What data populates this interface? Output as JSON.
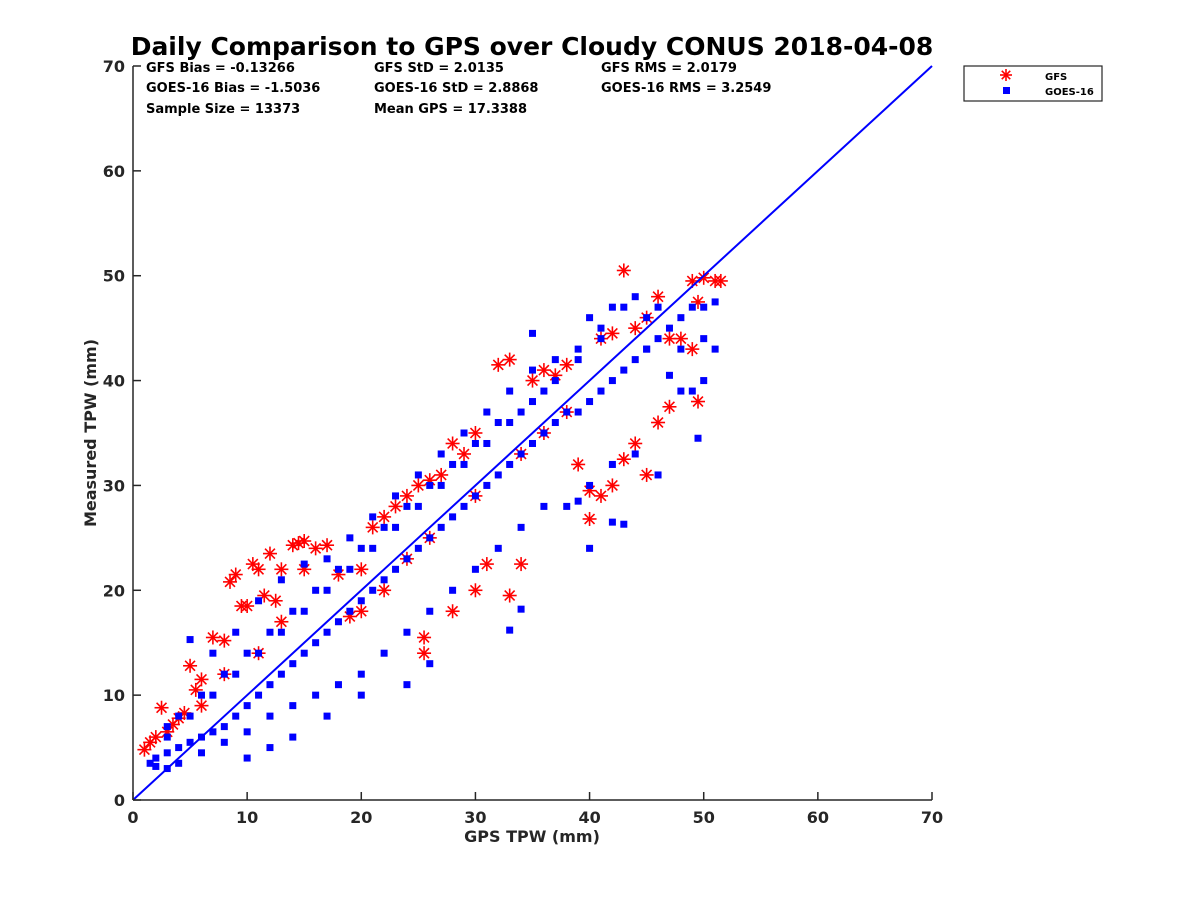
{
  "chart_data": {
    "type": "scatter",
    "title": "Daily Comparison to GPS over Cloudy CONUS 2018-04-08",
    "xlabel": "GPS TPW (mm)",
    "ylabel": "Measured TPW (mm)",
    "xlim": [
      0,
      70
    ],
    "ylim": [
      0,
      70
    ],
    "xticks": [
      "0",
      "10",
      "20",
      "30",
      "40",
      "50",
      "60",
      "70"
    ],
    "yticks": [
      "0",
      "10",
      "20",
      "30",
      "40",
      "50",
      "60",
      "70"
    ],
    "grid": false,
    "legend_position": "outside-top-right",
    "reference_line": {
      "x": [
        0,
        70
      ],
      "y": [
        0,
        70
      ],
      "color": "#0000ff"
    },
    "stats": [
      [
        "GFS Bias = -0.13266",
        "GFS StD = 2.0135",
        "GFS RMS = 2.0179"
      ],
      [
        "GOES-16 Bias = -1.5036",
        "GOES-16 StD = 2.8868",
        "GOES-16 RMS = 3.2549"
      ],
      [
        "Sample Size = 13373",
        "Mean GPS = 17.3388",
        ""
      ]
    ],
    "series": [
      {
        "name": "GFS",
        "marker": "asterisk",
        "color": "#ff0000",
        "points": [
          [
            1,
            4.8
          ],
          [
            1.5,
            5.5
          ],
          [
            2,
            6
          ],
          [
            2.5,
            8.8
          ],
          [
            3,
            6.5
          ],
          [
            3.5,
            7.2
          ],
          [
            4,
            7.8
          ],
          [
            4.5,
            8.3
          ],
          [
            5,
            12.8
          ],
          [
            5.5,
            10.5
          ],
          [
            6,
            11.5
          ],
          [
            7,
            15.5
          ],
          [
            8,
            15.2
          ],
          [
            8.5,
            20.8
          ],
          [
            9,
            21.5
          ],
          [
            9.5,
            18.5
          ],
          [
            10,
            18.5
          ],
          [
            10.5,
            22.5
          ],
          [
            11,
            22
          ],
          [
            11.5,
            19.5
          ],
          [
            12,
            23.5
          ],
          [
            12.5,
            19
          ],
          [
            13,
            22
          ],
          [
            14,
            24.3
          ],
          [
            14.5,
            24.5
          ],
          [
            15,
            24.7
          ],
          [
            16,
            24
          ],
          [
            17,
            24.3
          ],
          [
            18,
            21.5
          ],
          [
            19,
            17.5
          ],
          [
            20,
            22
          ],
          [
            21,
            26
          ],
          [
            22,
            27
          ],
          [
            23,
            28
          ],
          [
            24,
            29
          ],
          [
            25,
            30
          ],
          [
            26,
            30.5
          ],
          [
            27,
            31
          ],
          [
            28,
            34
          ],
          [
            28,
            18
          ],
          [
            29,
            33
          ],
          [
            30,
            35
          ],
          [
            30,
            20
          ],
          [
            31,
            22.5
          ],
          [
            32,
            41.5
          ],
          [
            33,
            42
          ],
          [
            33,
            19.5
          ],
          [
            34,
            22.5
          ],
          [
            35,
            40
          ],
          [
            36,
            41
          ],
          [
            37,
            40.5
          ],
          [
            38,
            41.5
          ],
          [
            39,
            32
          ],
          [
            40,
            29.5
          ],
          [
            40,
            26.8
          ],
          [
            41,
            44
          ],
          [
            41,
            29
          ],
          [
            42,
            44.5
          ],
          [
            42,
            30
          ],
          [
            43,
            50.5
          ],
          [
            43,
            32.5
          ],
          [
            44,
            45
          ],
          [
            44,
            34
          ],
          [
            45,
            46
          ],
          [
            45,
            31
          ],
          [
            46,
            48
          ],
          [
            46,
            36
          ],
          [
            47,
            44
          ],
          [
            47,
            37.5
          ],
          [
            48,
            44
          ],
          [
            49,
            49.5
          ],
          [
            49,
            43
          ],
          [
            49.5,
            47.5
          ],
          [
            49.5,
            38
          ],
          [
            50,
            49.8
          ],
          [
            51,
            49.5
          ],
          [
            51.5,
            49.5
          ],
          [
            25.5,
            15.5
          ],
          [
            25.5,
            14
          ],
          [
            15,
            22
          ],
          [
            13,
            17
          ],
          [
            11,
            14
          ],
          [
            8,
            12
          ],
          [
            6,
            9
          ],
          [
            20,
            18
          ],
          [
            22,
            20
          ],
          [
            24,
            23
          ],
          [
            26,
            25
          ],
          [
            30,
            29
          ],
          [
            34,
            33
          ],
          [
            38,
            37
          ],
          [
            36,
            35
          ]
        ]
      },
      {
        "name": "GOES-16",
        "marker": "square",
        "color": "#0000ff",
        "points": [
          [
            1.5,
            3.5
          ],
          [
            2,
            4
          ],
          [
            3,
            4.5
          ],
          [
            4,
            5
          ],
          [
            5,
            5.5
          ],
          [
            6,
            6
          ],
          [
            7,
            6.5
          ],
          [
            8,
            7
          ],
          [
            9,
            8
          ],
          [
            10,
            9
          ],
          [
            11,
            10
          ],
          [
            12,
            11
          ],
          [
            13,
            12
          ],
          [
            14,
            13
          ],
          [
            15,
            14
          ],
          [
            16,
            15
          ],
          [
            17,
            16
          ],
          [
            18,
            17
          ],
          [
            19,
            18
          ],
          [
            20,
            19
          ],
          [
            21,
            20
          ],
          [
            22,
            21
          ],
          [
            23,
            22
          ],
          [
            24,
            23
          ],
          [
            25,
            24
          ],
          [
            26,
            25
          ],
          [
            27,
            26
          ],
          [
            28,
            27
          ],
          [
            29,
            28
          ],
          [
            30,
            29
          ],
          [
            31,
            30
          ],
          [
            32,
            31
          ],
          [
            33,
            32
          ],
          [
            34,
            33
          ],
          [
            35,
            34
          ],
          [
            36,
            35
          ],
          [
            37,
            36
          ],
          [
            38,
            37
          ],
          [
            39,
            37
          ],
          [
            40,
            38
          ],
          [
            41,
            39
          ],
          [
            42,
            40
          ],
          [
            43,
            41
          ],
          [
            44,
            42
          ],
          [
            45,
            43
          ],
          [
            46,
            44
          ],
          [
            47,
            45
          ],
          [
            48,
            46
          ],
          [
            49,
            47
          ],
          [
            50,
            47
          ],
          [
            51,
            47.5
          ],
          [
            3,
            6
          ],
          [
            5,
            8
          ],
          [
            7,
            10
          ],
          [
            9,
            12
          ],
          [
            11,
            14
          ],
          [
            13,
            16
          ],
          [
            15,
            18
          ],
          [
            17,
            20
          ],
          [
            19,
            22
          ],
          [
            21,
            24
          ],
          [
            23,
            26
          ],
          [
            25,
            28
          ],
          [
            27,
            30
          ],
          [
            29,
            32
          ],
          [
            31,
            34
          ],
          [
            33,
            36
          ],
          [
            35,
            38
          ],
          [
            37,
            40
          ],
          [
            39,
            42
          ],
          [
            41,
            44
          ],
          [
            4,
            3.5
          ],
          [
            6,
            4.5
          ],
          [
            8,
            5.5
          ],
          [
            10,
            6.5
          ],
          [
            12,
            8
          ],
          [
            14,
            9
          ],
          [
            16,
            10
          ],
          [
            18,
            11
          ],
          [
            20,
            12
          ],
          [
            22,
            14
          ],
          [
            24,
            16
          ],
          [
            26,
            18
          ],
          [
            28,
            20
          ],
          [
            30,
            22
          ],
          [
            32,
            24
          ],
          [
            34,
            26
          ],
          [
            36,
            28
          ],
          [
            38,
            28
          ],
          [
            40,
            30
          ],
          [
            42,
            32
          ],
          [
            44,
            33
          ],
          [
            46,
            31
          ],
          [
            48,
            39
          ],
          [
            49.5,
            34.5
          ],
          [
            33,
            16.2
          ],
          [
            34,
            18.2
          ],
          [
            35,
            44.5
          ],
          [
            39,
            28.5
          ],
          [
            40,
            24
          ],
          [
            42,
            26.5
          ],
          [
            43,
            26.3
          ],
          [
            45,
            43
          ],
          [
            47,
            40.5
          ],
          [
            48,
            43
          ],
          [
            50,
            40
          ],
          [
            50,
            44
          ],
          [
            51,
            43
          ],
          [
            49,
            39
          ],
          [
            26,
            13
          ],
          [
            24,
            11
          ],
          [
            20,
            10
          ],
          [
            17,
            8
          ],
          [
            14,
            6
          ],
          [
            12,
            5
          ],
          [
            10,
            4
          ],
          [
            3,
            3
          ],
          [
            2,
            3.2
          ],
          [
            5,
            15.3
          ],
          [
            7,
            14
          ],
          [
            9,
            16
          ],
          [
            11,
            19
          ],
          [
            13,
            21
          ],
          [
            15,
            22.5
          ],
          [
            17,
            23
          ],
          [
            19,
            25
          ],
          [
            21,
            27
          ],
          [
            23,
            29
          ],
          [
            25,
            31
          ],
          [
            27,
            33
          ],
          [
            29,
            35
          ],
          [
            31,
            37
          ],
          [
            33,
            39
          ],
          [
            35,
            41
          ],
          [
            37,
            42
          ],
          [
            39,
            43
          ],
          [
            41,
            45
          ],
          [
            43,
            47
          ],
          [
            44,
            48
          ],
          [
            45,
            46
          ],
          [
            46,
            47
          ],
          [
            40,
            46
          ],
          [
            42,
            47
          ],
          [
            36,
            39
          ],
          [
            34,
            37
          ],
          [
            32,
            36
          ],
          [
            30,
            34
          ],
          [
            28,
            32
          ],
          [
            26,
            30
          ],
          [
            24,
            28
          ],
          [
            22,
            26
          ],
          [
            20,
            24
          ],
          [
            18,
            22
          ],
          [
            16,
            20
          ],
          [
            14,
            18
          ],
          [
            12,
            16
          ],
          [
            10,
            14
          ],
          [
            8,
            12
          ],
          [
            6,
            10
          ],
          [
            4,
            8
          ],
          [
            3,
            7
          ]
        ]
      }
    ]
  }
}
